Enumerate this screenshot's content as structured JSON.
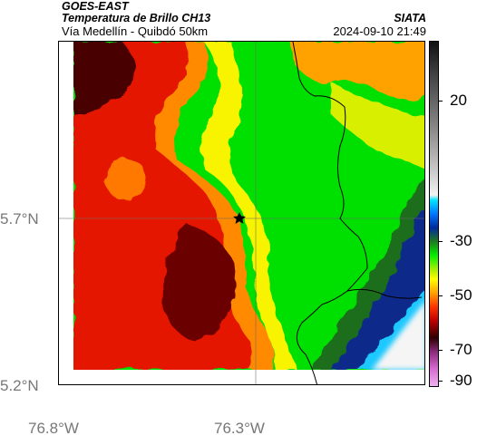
{
  "header": {
    "satellite": "GOES-EAST",
    "product": "Temperatura de Brillo CH13",
    "location": "Vía Medellín - Quibdó 50km",
    "source": "SIATA",
    "datetime": "2024-09-10 21:49"
  },
  "axes": {
    "lat_ticks": [
      "5.7°N",
      "5.2°N"
    ],
    "lon_ticks": [
      "76.8°W",
      "76.3°W"
    ]
  },
  "colorbar": {
    "labels": [
      "20",
      "-30",
      "-50",
      "-70",
      "-90"
    ],
    "colors": [
      "#111111",
      "#888888",
      "#f2f2f2",
      "#00e5ff",
      "#002a9e",
      "#00ee00",
      "#ffff00",
      "#ff3300",
      "#2e0000",
      "#d66bd0"
    ]
  },
  "map": {
    "marker": "star-marker",
    "palette": {
      "dark_red": "#5a0000",
      "red": "#e01000",
      "orange": "#ff7a00",
      "yellow": "#f5f000",
      "green": "#00d800",
      "dark_green": "#1f6e1f",
      "navy": "#0a2a8a",
      "cyan": "#1ec8ff",
      "white": "#f5f5f5"
    }
  }
}
